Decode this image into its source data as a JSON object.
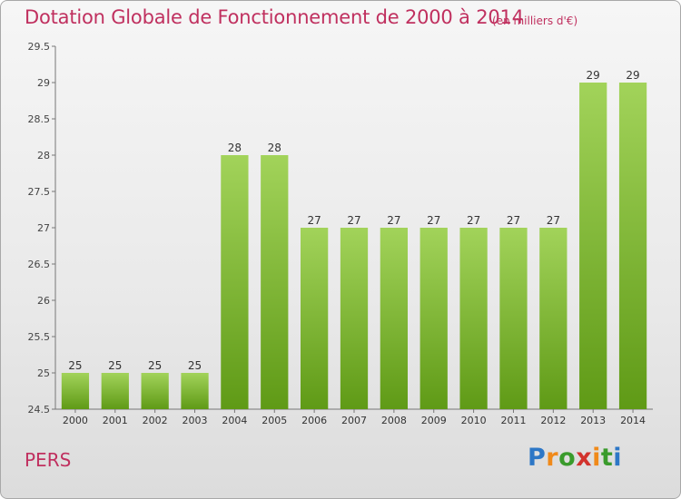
{
  "header": {
    "title": "Dotation Globale de Fonctionnement de 2000 à 2014",
    "unit": "(en milliers d'€)"
  },
  "footer": {
    "commune": "PERS",
    "logo": "Proxiti"
  },
  "colors": {
    "title": "#c0305f",
    "bar_top": "#a2d35a",
    "bar_bottom": "#5f9a16",
    "axis": "#555555"
  },
  "chart_data": {
    "type": "bar",
    "title": "Dotation Globale de Fonctionnement de 2000 à 2014",
    "subtitle": "(en milliers d'€)",
    "xlabel": "",
    "ylabel": "",
    "categories": [
      "2000",
      "2001",
      "2002",
      "2003",
      "2004",
      "2005",
      "2006",
      "2007",
      "2008",
      "2009",
      "2010",
      "2011",
      "2012",
      "2013",
      "2014"
    ],
    "values": [
      25,
      25,
      25,
      25,
      28,
      28,
      27,
      27,
      27,
      27,
      27,
      27,
      27,
      29,
      29
    ],
    "ylim": [
      24.5,
      29.5
    ],
    "yticks": [
      24.5,
      25,
      25.5,
      26,
      26.5,
      27,
      27.5,
      28,
      28.5,
      29,
      29.5
    ],
    "ytick_labels": [
      "24.5",
      "25",
      "25.5",
      "26",
      "26.5",
      "27",
      "27.5",
      "28",
      "28.5",
      "29",
      "29.5"
    ],
    "grid": false,
    "data_labels": true
  }
}
